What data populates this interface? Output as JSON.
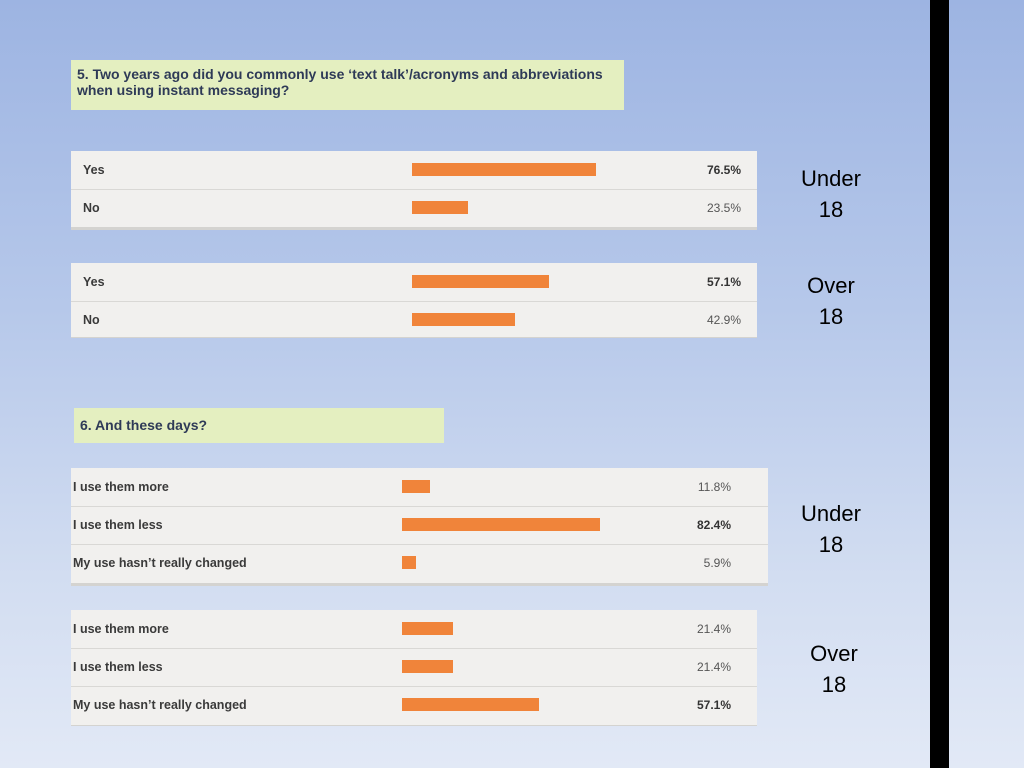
{
  "questions": {
    "q5": "5. Two years ago did you commonly use ‘text talk’/acronyms and abbreviations when using instant messaging?",
    "q6": "6. And these days?"
  },
  "group_labels": {
    "under": [
      "Under",
      "18"
    ],
    "over": [
      "Over",
      "18"
    ]
  },
  "chart_data": [
    {
      "type": "bar",
      "title": "5. Two years ago did you commonly use ‘text talk’/acronyms and abbreviations when using instant messaging?",
      "group": "Under 18",
      "categories": [
        "Yes",
        "No"
      ],
      "values": [
        76.5,
        23.5
      ],
      "labels": [
        "76.5%",
        "23.5%"
      ],
      "highlight": [
        true,
        false
      ]
    },
    {
      "type": "bar",
      "title": "5. Two years ago did you commonly use ‘text talk’/acronyms and abbreviations when using instant messaging?",
      "group": "Over 18",
      "categories": [
        "Yes",
        "No"
      ],
      "values": [
        57.1,
        42.9
      ],
      "labels": [
        "57.1%",
        "42.9%"
      ],
      "highlight": [
        true,
        false
      ]
    },
    {
      "type": "bar",
      "title": "6. And these days?",
      "group": "Under 18",
      "categories": [
        "I use them more",
        "I use them less",
        "My use hasn’t really changed"
      ],
      "values": [
        11.8,
        82.4,
        5.9
      ],
      "labels": [
        "11.8%",
        "82.4%",
        "5.9%"
      ],
      "highlight": [
        false,
        true,
        false
      ]
    },
    {
      "type": "bar",
      "title": "6. And these days?",
      "group": "Over 18",
      "categories": [
        "I use them more",
        "I use them less",
        "My use hasn’t really changed"
      ],
      "values": [
        21.4,
        21.4,
        57.1
      ],
      "labels": [
        "21.4%",
        "21.4%",
        "57.1%"
      ],
      "highlight": [
        false,
        false,
        true
      ]
    }
  ],
  "colors": {
    "bar": "#f0843a",
    "question_bg": "#e4efc0",
    "panel_bg": "#f1f0ee"
  }
}
